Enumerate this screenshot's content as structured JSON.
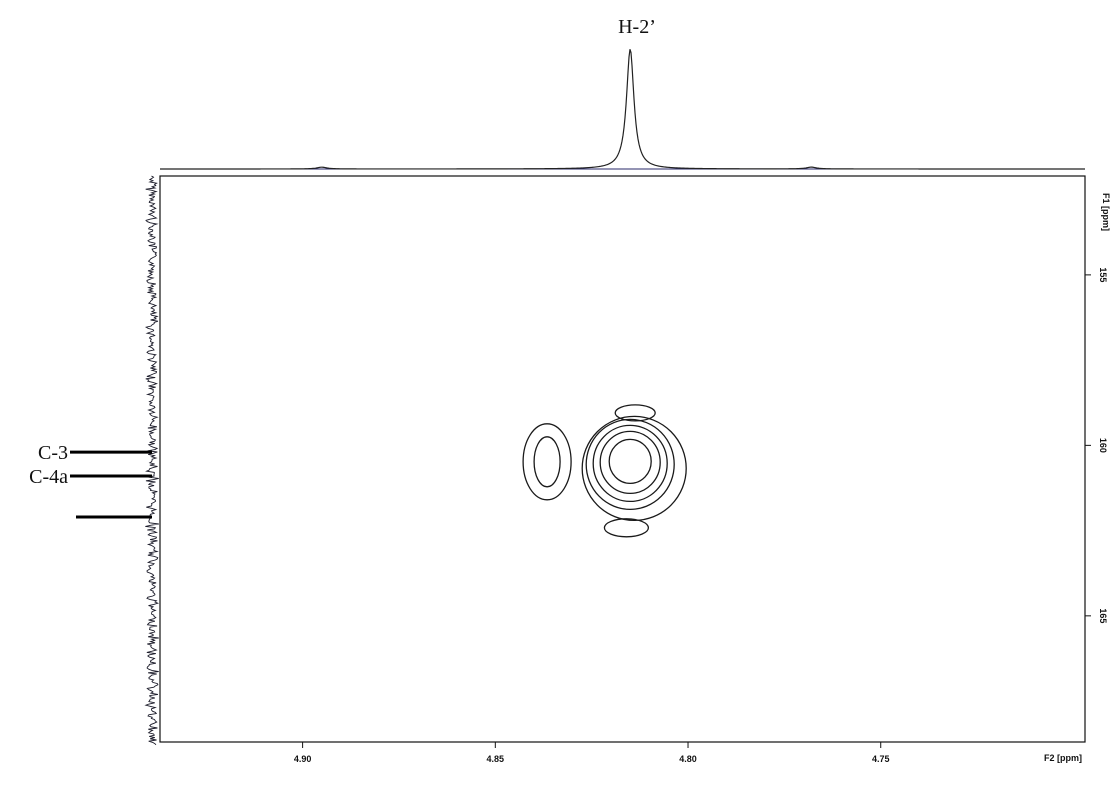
{
  "chart_data": {
    "type": "contour",
    "title": "",
    "x_axis": {
      "label": "F2 [ppm]",
      "reversed": true,
      "range": [
        4.937,
        4.697
      ],
      "ticks": [
        {
          "value": 4.9,
          "label": "4.90"
        },
        {
          "value": 4.85,
          "label": "4.85"
        },
        {
          "value": 4.8,
          "label": "4.80"
        },
        {
          "value": 4.75,
          "label": "4.75"
        }
      ]
    },
    "y_axis": {
      "label": "F1 [ppm]",
      "reversed": true,
      "range": [
        152.1,
        168.7
      ],
      "ticks": [
        {
          "value": 155,
          "label": "155"
        },
        {
          "value": 160,
          "label": "160"
        },
        {
          "value": 165,
          "label": "165"
        }
      ]
    },
    "top_projection": {
      "peak_label": "H-2’",
      "peak_position": 4.815,
      "small_bumps": [
        4.895,
        4.768
      ]
    },
    "left_projection_markers": [
      {
        "label": "C-3",
        "value": 160.2
      },
      {
        "label": "C-4a",
        "value": 160.9
      },
      {
        "label": "",
        "value": 162.1
      }
    ],
    "cross_peaks": [
      {
        "x": 4.815,
        "y": 160.5,
        "note": "main correlation"
      },
      {
        "x": 4.835,
        "y": 160.6,
        "note": "shoulder"
      },
      {
        "x": 4.815,
        "y": 158.9,
        "note": "side contour"
      },
      {
        "x": 4.816,
        "y": 162.3,
        "note": "side contour"
      }
    ],
    "colors": {
      "contour": "#1a1a1a",
      "frame": "#111111",
      "projection": "#222222",
      "baseline": "#2a2a6a"
    }
  }
}
